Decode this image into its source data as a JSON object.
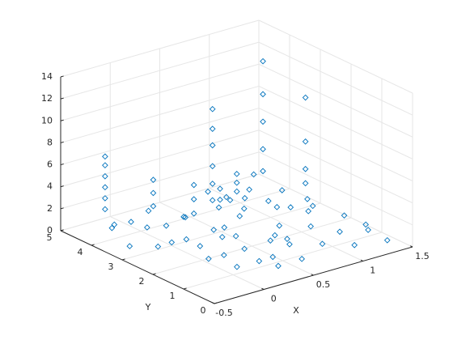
{
  "chart_data": {
    "type": "scatter3d",
    "xlabel": "X",
    "ylabel": "Y",
    "xlim": [
      -0.5,
      1.5
    ],
    "xticks": [
      -0.5,
      0,
      0.5,
      1,
      1.5
    ],
    "ylim": [
      0,
      5
    ],
    "yticks": [
      0,
      1,
      2,
      3,
      4,
      5
    ],
    "zlim": [
      0,
      14
    ],
    "zticks": [
      0,
      2,
      4,
      6,
      8,
      10,
      12,
      14
    ],
    "grid": true,
    "series": [
      {
        "color": "#0072bd",
        "x": [
          -0.2,
          -0.1,
          0.0,
          -0.3,
          0.1,
          0.2,
          0.0,
          -0.2,
          0.3,
          0.1,
          0.4,
          0.2,
          0.0,
          0.3,
          0.5,
          0.1,
          0.4,
          0.2,
          0.6,
          0.3,
          -0.1,
          0.5,
          0.6,
          -0.3,
          0.2,
          0.4,
          0.5,
          0.7,
          0.6,
          0.0,
          -0.3,
          -0.3,
          -0.3,
          -0.3,
          -0.3,
          -0.3,
          0.0,
          0.0,
          0.0,
          0.1,
          0.1,
          0.1,
          0.35,
          0.35,
          0.35,
          0.35,
          0.35,
          0.35,
          0.8,
          0.9,
          1.0,
          1.1,
          0.8,
          1.2,
          1.0,
          1.3,
          0.9,
          1.1,
          1.4,
          1.0,
          1.2,
          1.4,
          0.9,
          1.3,
          1.1,
          1.4,
          0.7,
          0.8,
          1.3,
          1.2,
          1.4,
          0.7,
          1.2,
          1.2,
          1.2,
          1.2,
          1.2,
          1.35,
          1.35,
          1.35,
          1.35,
          0.75,
          0.75,
          0.75,
          0.55,
          0.55
        ],
        "y": [
          4.3,
          4.0,
          3.8,
          3.9,
          3.5,
          3.2,
          3.0,
          2.8,
          2.6,
          2.4,
          2.2,
          2.0,
          1.8,
          1.6,
          1.4,
          1.2,
          1.0,
          0.8,
          0.7,
          0.5,
          2.2,
          2.9,
          3.4,
          3.4,
          4.4,
          3.9,
          2.4,
          1.9,
          1.1,
          1.3,
          4.2,
          4.2,
          4.2,
          4.2,
          4.2,
          4.2,
          3.6,
          3.6,
          3.6,
          2.6,
          2.6,
          2.6,
          2.8,
          2.8,
          2.8,
          2.8,
          2.8,
          2.8,
          4.4,
          4.0,
          3.7,
          3.4,
          3.2,
          3.0,
          2.8,
          2.6,
          2.4,
          2.1,
          1.9,
          1.7,
          1.4,
          1.2,
          1.0,
          0.8,
          0.6,
          0.5,
          2.9,
          3.8,
          3.6,
          4.2,
          3.1,
          1.5,
          3.9,
          3.9,
          3.9,
          3.9,
          3.9,
          3.0,
          3.0,
          3.0,
          3.0,
          3.3,
          3.3,
          3.3,
          3.2,
          3.2
        ],
        "z": [
          0.4,
          1.1,
          0.6,
          1.5,
          0.9,
          1.8,
          0.3,
          0.7,
          1.2,
          0.5,
          0.9,
          1.6,
          0.4,
          0.8,
          1.3,
          0.2,
          0.6,
          1.0,
          0.3,
          0.7,
          1.9,
          0.5,
          1.4,
          0.2,
          0.8,
          0.4,
          2.2,
          0.6,
          1.1,
          1.4,
          2.5,
          3.5,
          4.5,
          5.5,
          6.5,
          7.3,
          2.8,
          4.0,
          5.2,
          3.2,
          4.5,
          5.8,
          3.5,
          5,
          6.6,
          8.5,
          10,
          11.8,
          1.0,
          0.5,
          1.6,
          0.7,
          2.0,
          0.4,
          1.2,
          0.8,
          0.3,
          1.5,
          0.6,
          0.9,
          0.3,
          0.7,
          0.5,
          1.0,
          0.4,
          0.2,
          1.7,
          1.3,
          0.9,
          1.8,
          0.5,
          0.8,
          2.5,
          4.5,
          7,
          9.5,
          12.5,
          2.2,
          3.5,
          6,
          10,
          2.6,
          3.4,
          4.2,
          2.5,
          3.5
        ]
      }
    ]
  }
}
